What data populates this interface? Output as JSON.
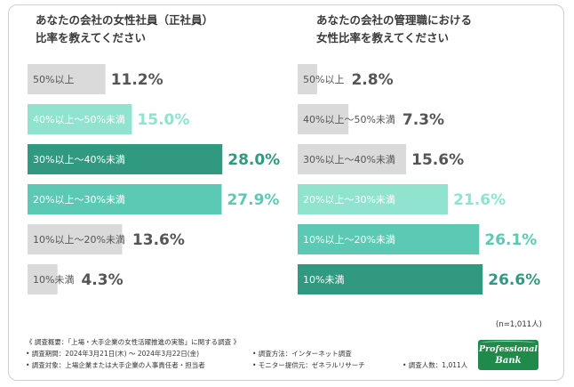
{
  "colors": {
    "gray": "#dadada",
    "light_teal": "#8fe3cf",
    "mid_teal": "#5cc9b4",
    "dark_teal": "#31997f",
    "text_dark": "#555555",
    "text_white": "#ffffff"
  },
  "chart_data": [
    {
      "type": "bar",
      "orientation": "horizontal",
      "title_lines": [
        "あなたの会社の女性社員（正社員）",
        "比率を教えてください"
      ],
      "categories": [
        "50%以上",
        "40%以上～50%未満",
        "30%以上～40%未満",
        "20%以上～30%未満",
        "10%以上～20%未満",
        "10%未満"
      ],
      "values": [
        11.2,
        15.0,
        28.0,
        27.9,
        13.6,
        4.3
      ],
      "value_labels": [
        "11.2%",
        "15.0%",
        "28.0%",
        "27.9%",
        "13.6%",
        "4.3%"
      ],
      "bar_colors": [
        "gray",
        "light_teal",
        "dark_teal",
        "mid_teal",
        "gray",
        "gray"
      ],
      "xlim": [
        0,
        33
      ]
    },
    {
      "type": "bar",
      "orientation": "horizontal",
      "title_lines": [
        "あなたの会社の管理職における",
        "女性比率を教えてください"
      ],
      "categories": [
        "50%以上",
        "40%以上～50%未満",
        "30%以上～40%未満",
        "20%以上～30%未満",
        "10%以上～20%未満",
        "10%未満"
      ],
      "values": [
        2.8,
        7.3,
        15.6,
        21.6,
        26.1,
        26.6
      ],
      "value_labels": [
        "2.8%",
        "7.3%",
        "15.6%",
        "21.6%",
        "26.1%",
        "26.6%"
      ],
      "bar_colors": [
        "gray",
        "gray",
        "gray",
        "light_teal",
        "mid_teal",
        "dark_teal"
      ],
      "xlim": [
        0,
        33
      ]
    }
  ],
  "sample_note": "(n=1,011人)",
  "footnotes": {
    "overview": "《 調査概要：「上場・大手企業の女性活躍推進の実態」に関する調査 》",
    "period": "• 調査期間：2024年3月21日(木) ～ 2024年3月22日(金)",
    "method": "• 調査方法：インターネット調査",
    "target": "• 調査対象：上場企業または大手企業の人事責任者・担当者",
    "provider": "• モニター提供元：ゼネラルリサーチ",
    "count": "• 調査人数：1,011人"
  },
  "logo": {
    "line1": "Professional",
    "line2": "Bank"
  }
}
